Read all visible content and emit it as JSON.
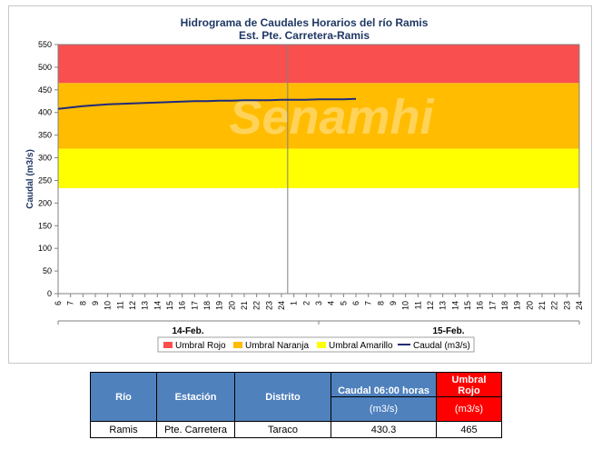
{
  "chart_data": {
    "type": "line",
    "title": "Hidrograma de Caudales Horarios del río Ramis",
    "subtitle": "Est. Pte. Carretera-Ramis",
    "ylabel": "Caudal  (m3/s)",
    "ylim": [
      0,
      550
    ],
    "yticks": [
      "0",
      "50",
      "100",
      "150",
      "200",
      "250",
      "300",
      "350",
      "400",
      "450",
      "500",
      "550"
    ],
    "xticks": [
      "6",
      "7",
      "8",
      "9",
      "10",
      "11",
      "12",
      "13",
      "14",
      "15",
      "16",
      "17",
      "18",
      "19",
      "20",
      "21",
      "22",
      "23",
      "24",
      "1",
      "2",
      "3",
      "4",
      "5",
      "6",
      "7",
      "8",
      "9",
      "10",
      "11",
      "12",
      "13",
      "14",
      "15",
      "16",
      "17",
      "18",
      "19",
      "20",
      "21",
      "22",
      "23",
      "24"
    ],
    "date_labels": [
      "14-Feb.",
      "15-Feb."
    ],
    "thresholds": [
      {
        "name": "Umbral Rojo",
        "from": 465,
        "to": 550,
        "color": "#f94f4f"
      },
      {
        "name": "Umbral Naranja",
        "from": 320,
        "to": 465,
        "color": "#ffbc00"
      },
      {
        "name": "Umbral Amarillo",
        "from": 233,
        "to": 320,
        "color": "#ffff00"
      }
    ],
    "series": [
      {
        "name": "Caudal (m3/s)",
        "color": "#1f2b7a",
        "points": [
          [
            0,
            408
          ],
          [
            1,
            411
          ],
          [
            2,
            414
          ],
          [
            3,
            416
          ],
          [
            4,
            418
          ],
          [
            5,
            419
          ],
          [
            6,
            420
          ],
          [
            7,
            421
          ],
          [
            8,
            422
          ],
          [
            9,
            423
          ],
          [
            10,
            424
          ],
          [
            11,
            425
          ],
          [
            12,
            425
          ],
          [
            13,
            426
          ],
          [
            14,
            426
          ],
          [
            15,
            427
          ],
          [
            16,
            427
          ],
          [
            17,
            427
          ],
          [
            18,
            428
          ],
          [
            19,
            428
          ],
          [
            20,
            428
          ],
          [
            21,
            429
          ],
          [
            22,
            429
          ],
          [
            23,
            429
          ],
          [
            24,
            430
          ]
        ]
      }
    ],
    "legend": {
      "position": "bottom",
      "items": [
        "Umbral Rojo",
        "Umbral Naranja",
        "Umbral Amarillo",
        "Caudal (m3/s)"
      ]
    },
    "grid": false,
    "watermark": "Senamhi"
  },
  "table": {
    "headers": [
      "Río",
      "Estación",
      "Distrito",
      "Caudal 06:00 horas",
      "(m3/s)",
      "Umbral",
      "Rojo",
      "(m3/s)"
    ],
    "row": [
      "Ramis",
      "Pte. Carretera",
      "Taraco",
      "430.3",
      "465"
    ]
  }
}
